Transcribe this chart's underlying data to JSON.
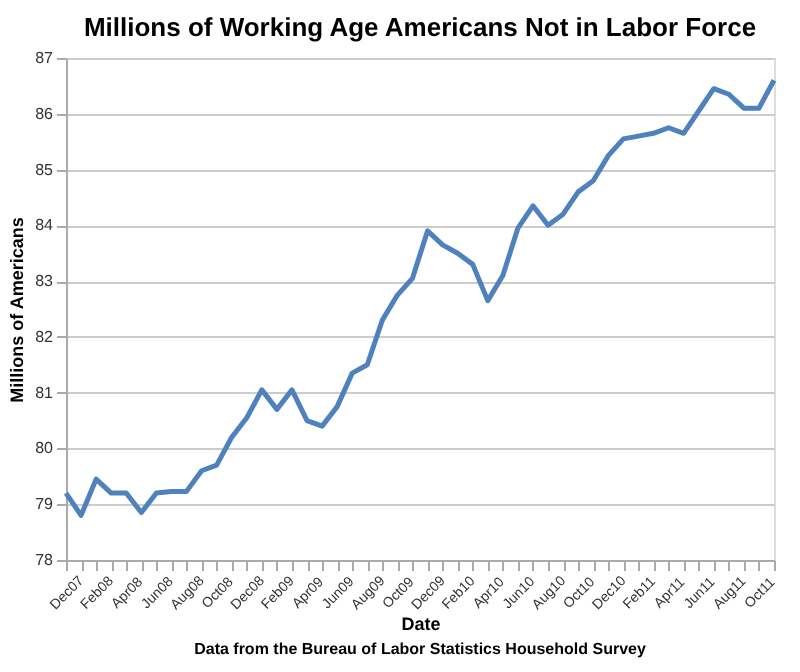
{
  "chart_data": {
    "type": "line",
    "title": "Millions of Working Age Americans Not in Labor Force",
    "xlabel": "Date",
    "ylabel": "Millions of Americans",
    "annotations": [
      "Data from the Bureau of Labor Statistics Household Survey"
    ],
    "categories": [
      "Dec07",
      null,
      "Feb08",
      null,
      "Apr08",
      null,
      "Jun08",
      null,
      "Aug08",
      null,
      "Oct08",
      null,
      "Dec08",
      null,
      "Feb09",
      null,
      "Apr09",
      null,
      "Jun09",
      null,
      "Aug09",
      null,
      "Oct09",
      null,
      "Dec09",
      null,
      "Feb10",
      null,
      "Apr10",
      null,
      "Jun10",
      null,
      "Aug10",
      null,
      "Oct10",
      null,
      "Dec10",
      null,
      "Feb11",
      null,
      "Apr11",
      null,
      "Jun11",
      null,
      "Aug11",
      null,
      "Oct11",
      null
    ],
    "series": [
      {
        "color": "#4f81bd",
        "values": [
          79.2,
          78.8,
          79.45,
          79.2,
          79.2,
          78.85,
          79.2,
          79.23,
          79.23,
          79.6,
          79.7,
          80.2,
          80.55,
          81.05,
          80.7,
          81.05,
          80.5,
          80.4,
          80.75,
          81.35,
          81.5,
          82.3,
          82.75,
          83.05,
          83.9,
          83.65,
          83.5,
          83.3,
          82.65,
          83.1,
          83.95,
          84.35,
          84.0,
          84.2,
          84.6,
          84.8,
          85.25,
          85.55,
          85.6,
          85.65,
          85.75,
          85.65,
          86.05,
          86.45,
          86.35,
          86.1,
          86.1,
          86.6
        ]
      }
    ],
    "ylim": [
      78,
      87
    ],
    "yticks": [
      78,
      79,
      80,
      81,
      82,
      83,
      84,
      85,
      86,
      87
    ],
    "grid": "y",
    "marker": "none",
    "line_style": "solid"
  }
}
